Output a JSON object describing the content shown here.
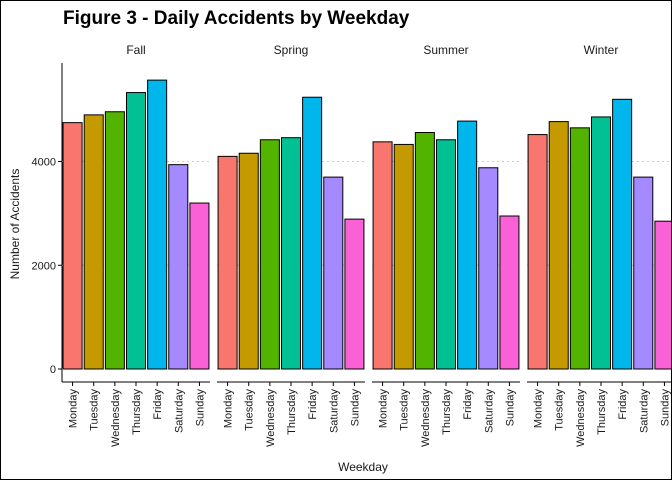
{
  "chart_data": {
    "type": "bar",
    "title": "Figure 3 - Daily Accidents by Weekday",
    "xlabel": "Weekday",
    "ylabel": "Number of Accidents",
    "ylim": [
      0,
      5900
    ],
    "yticks": [
      0,
      2000,
      4000
    ],
    "grid": "dotted horizontal major lines",
    "legend": "none",
    "categories": [
      "Monday",
      "Tuesday",
      "Wednesday",
      "Thursday",
      "Friday",
      "Saturday",
      "Sunday"
    ],
    "colors": [
      "#F8766D",
      "#C49A00",
      "#53B400",
      "#00C094",
      "#00B6EB",
      "#A58AFF",
      "#FB61D7"
    ],
    "facets": [
      {
        "name": "Fall",
        "values": [
          4750,
          4900,
          4960,
          5330,
          5570,
          3940,
          3200
        ]
      },
      {
        "name": "Spring",
        "values": [
          4100,
          4160,
          4420,
          4460,
          5240,
          3700,
          2890
        ]
      },
      {
        "name": "Summer",
        "values": [
          4380,
          4330,
          4560,
          4420,
          4780,
          3880,
          2950
        ]
      },
      {
        "name": "Winter",
        "values": [
          4520,
          4770,
          4650,
          4860,
          5200,
          3700,
          2850
        ]
      }
    ]
  }
}
